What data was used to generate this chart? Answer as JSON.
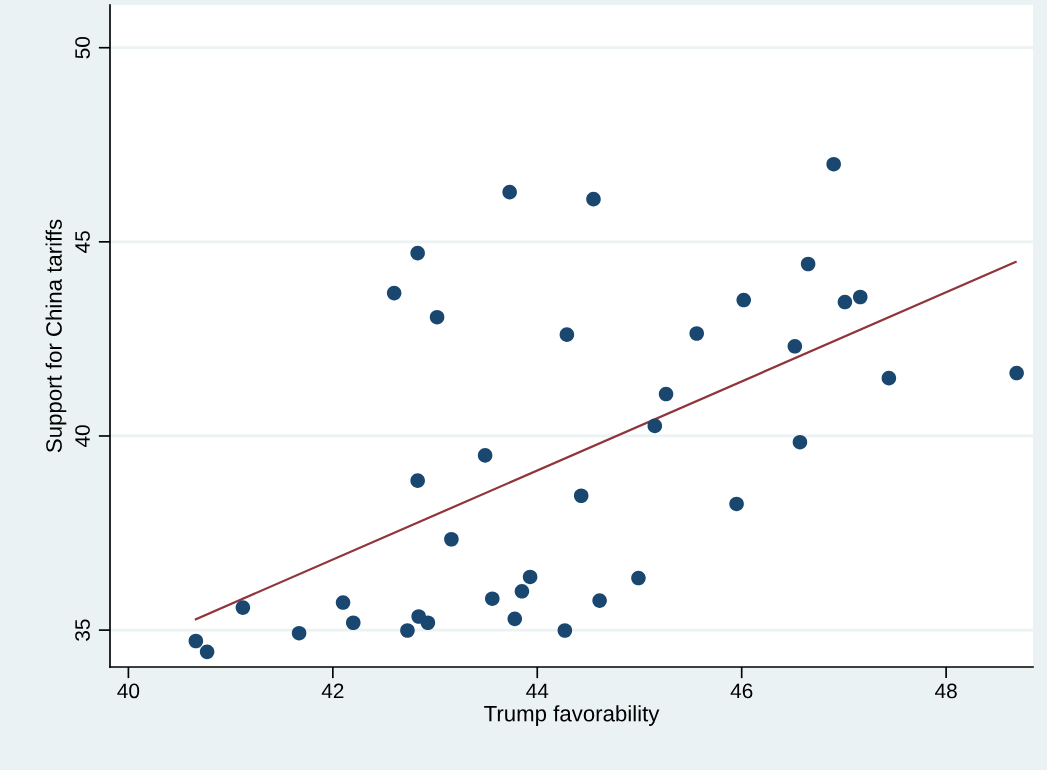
{
  "chart_data": {
    "type": "scatter",
    "xlabel": "Trump favorability",
    "ylabel": "Support for China tariffs",
    "xlim": [
      39.82,
      48.85
    ],
    "ylim": [
      34.05,
      51.1
    ],
    "xticks": [
      40,
      42,
      44,
      46,
      48
    ],
    "yticks": [
      35,
      40,
      45,
      50
    ],
    "grid": "y",
    "series": [
      {
        "marker": "circle",
        "color": "#1a476f",
        "x": [
          43.73,
          42.83,
          42.6,
          43.02,
          43.49,
          42.83,
          44.55,
          46.9,
          46.65,
          46.02,
          47.01,
          47.16,
          44.29,
          45.56,
          46.52,
          47.44,
          48.69,
          45.26,
          45.15,
          46.57,
          44.43,
          45.95,
          40.66,
          40.77,
          41.12,
          41.67,
          42.1,
          42.2,
          42.73,
          42.84,
          42.93,
          43.16,
          43.56,
          43.78,
          43.85,
          43.93,
          44.27,
          44.99,
          44.61
        ],
        "values": [
          46.28,
          44.71,
          43.68,
          43.06,
          39.5,
          38.85,
          46.1,
          47.0,
          44.43,
          43.5,
          43.45,
          43.58,
          42.61,
          42.64,
          42.31,
          41.49,
          41.62,
          41.08,
          40.26,
          39.84,
          38.46,
          38.25,
          34.72,
          34.44,
          35.58,
          34.92,
          35.71,
          35.19,
          34.99,
          35.35,
          35.19,
          37.34,
          35.81,
          35.29,
          36.0,
          36.37,
          34.99,
          36.34,
          35.76
        ]
      },
      {
        "type": "line",
        "color": "#90353b",
        "marker": "none",
        "line_style": "solid",
        "x": [
          40.66,
          48.68
        ],
        "values": [
          35.28,
          44.48
        ]
      }
    ]
  }
}
